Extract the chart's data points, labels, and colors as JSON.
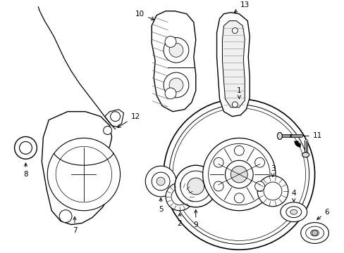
{
  "background_color": "#ffffff",
  "fig_width": 4.89,
  "fig_height": 3.6,
  "dpi": 100
}
